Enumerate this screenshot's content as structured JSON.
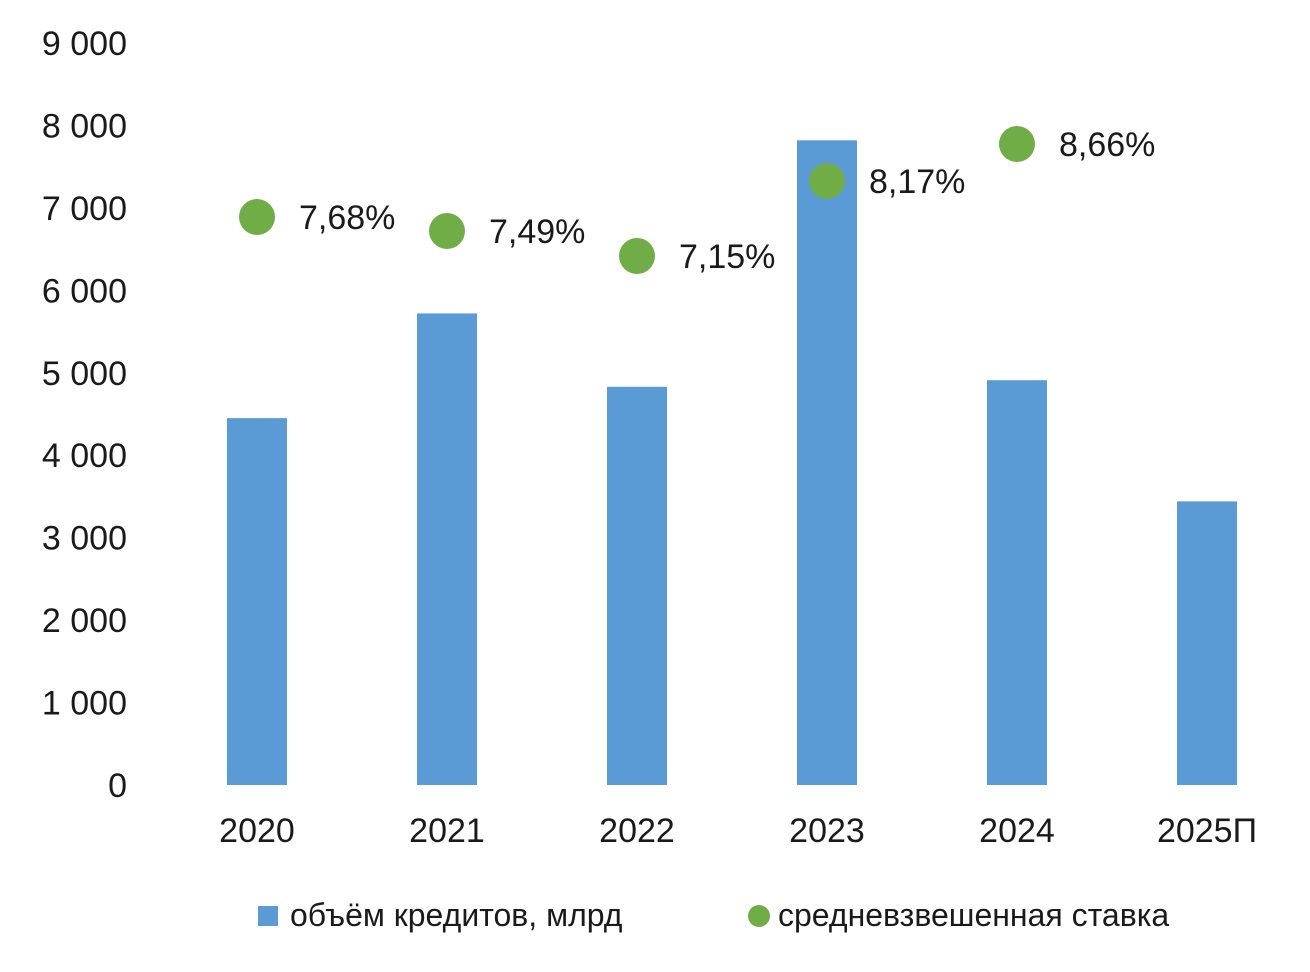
{
  "chart_data": {
    "type": "bar",
    "title": "",
    "xlabel": "",
    "ylabel": "",
    "ylim": [
      0,
      9000
    ],
    "yticks": [
      0,
      1000,
      2000,
      3000,
      4000,
      5000,
      6000,
      7000,
      8000,
      9000
    ],
    "ytick_labels": [
      "0",
      "1 000",
      "2 000",
      "3 000",
      "4 000",
      "5 000",
      "6 000",
      "7 000",
      "8 000",
      "9 000"
    ],
    "categories": [
      "2020",
      "2021",
      "2022",
      "2023",
      "2024",
      "2025П"
    ],
    "grid": false,
    "legend_position": "bottom",
    "series": [
      {
        "name": "объём кредитов, млрд",
        "type": "bar",
        "color": "#5b9bd5",
        "values": [
          4450,
          5720,
          4830,
          7820,
          4910,
          3440
        ]
      },
      {
        "name": "средневзвешенная ставка",
        "type": "scatter",
        "color": "#70ad47",
        "values": [
          7.68,
          7.49,
          7.15,
          8.17,
          8.66,
          null
        ],
        "labels": [
          "7,68%",
          "7,49%",
          "7,15%",
          "8,17%",
          "8,66%",
          null
        ]
      }
    ]
  }
}
